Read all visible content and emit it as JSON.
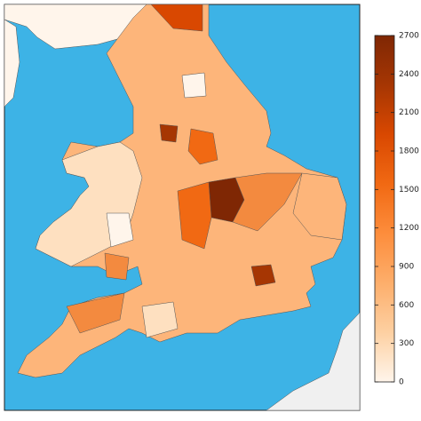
{
  "colorbar": {
    "min": 0,
    "max": 2700,
    "ticks": [
      0,
      300,
      600,
      900,
      1200,
      1500,
      1800,
      2100,
      2400,
      2700
    ],
    "colormap": [
      "#fff5eb",
      "#fdd0a2",
      "#fdae6b",
      "#fd8d3c",
      "#f16913",
      "#d94801",
      "#a63603",
      "#7f2704"
    ]
  }
}
